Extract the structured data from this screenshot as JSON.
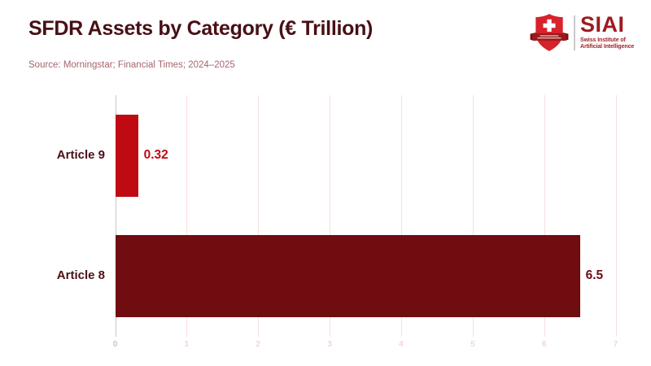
{
  "chart_data": {
    "type": "bar",
    "orientation": "horizontal",
    "title": "SFDR Assets by Category (€ Trillion)",
    "source": "Source: Morningstar; Financial Times; 2024–2025",
    "categories": [
      "Article 9",
      "Article 8"
    ],
    "values": [
      0.32,
      6.5
    ],
    "value_labels": [
      "0.32",
      "6.5"
    ],
    "xlabel": "",
    "ylabel": "",
    "xlim": [
      0,
      7
    ],
    "xticks": [
      0,
      1,
      2,
      3,
      4,
      5,
      6,
      7
    ],
    "grid": true,
    "legend": false,
    "bar_colors": [
      "#c00a11",
      "#6f0d11"
    ],
    "value_label_colors": [
      "#c00a11",
      "#6f0d11"
    ],
    "category_label_color": "#4a1015",
    "gridline_color": "#f9dfdf",
    "zero_gridline_color": "#c6c6c6",
    "tick_label_color": "#f3d6d6",
    "zero_tick_label_color": "#cfc2c2"
  },
  "logo": {
    "acronym": "SIAI",
    "name_line1": "Swiss Institute of",
    "name_line2": "Artificial Intelligence",
    "colors": {
      "shield": "#d7222b",
      "ribbon": "#9a191d",
      "ribbon_wings": "#7a1216",
      "text": "#9d1b1f"
    }
  }
}
